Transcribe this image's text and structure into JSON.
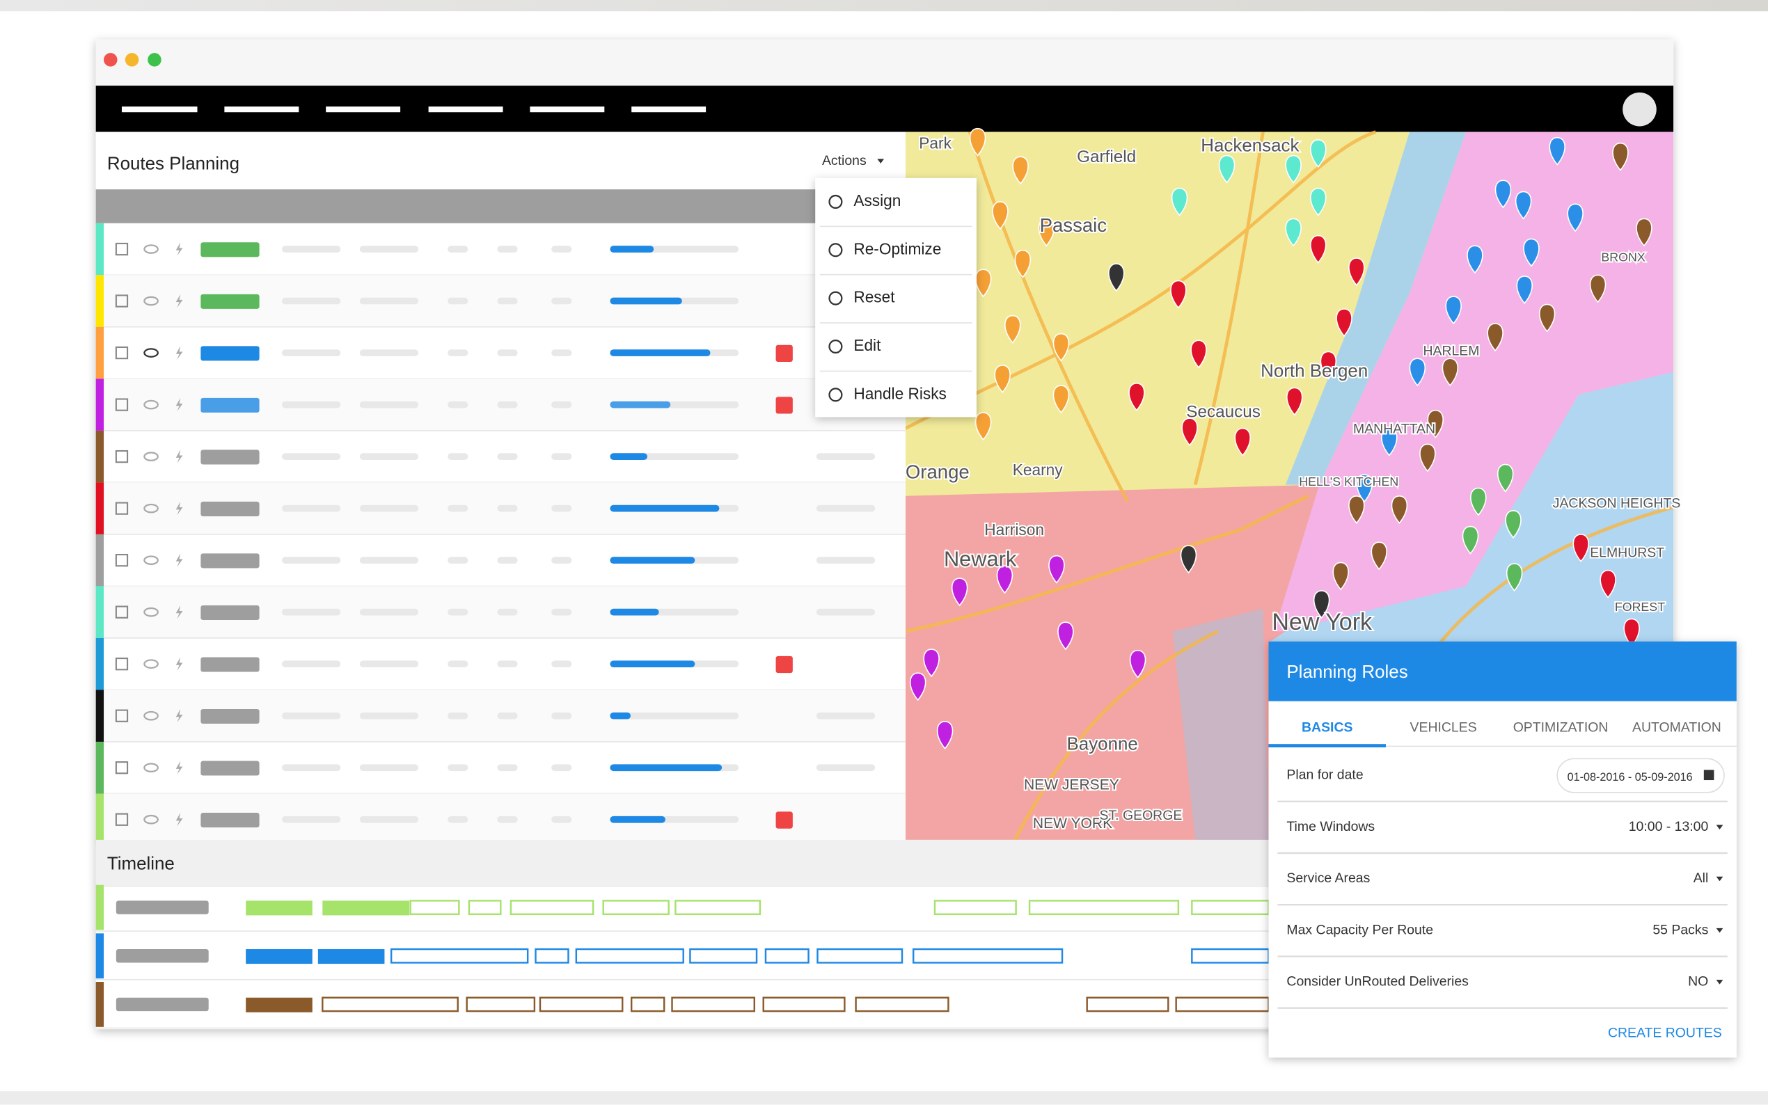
{
  "header": {
    "title": "Routes Planning",
    "actions": "Actions"
  },
  "menu": [
    "Assign",
    "Re-Optimize",
    "Reset",
    "Edit",
    "Handle Risks"
  ],
  "rows": [
    {
      "color": "#5de8c5",
      "status": "#5cb85c",
      "progress": 0.34,
      "risk": false
    },
    {
      "color": "#ffe600",
      "status": "#5cb85c",
      "progress": 0.56,
      "risk": false
    },
    {
      "color": "#ffa040",
      "status": "#1e88e5",
      "progress": 0.78,
      "risk": true
    },
    {
      "color": "#c020e0",
      "status": "#4a9ee8",
      "progress": 0.47,
      "risk": true
    },
    {
      "color": "#8b5a2b",
      "status": "#9e9e9e",
      "progress": 0.29,
      "risk": false
    },
    {
      "color": "#e01020",
      "status": "#9e9e9e",
      "progress": 0.85,
      "risk": false
    },
    {
      "color": "#9e9e9e",
      "status": "#9e9e9e",
      "progress": 0.66,
      "risk": false
    },
    {
      "color": "#5de8c5",
      "status": "#9e9e9e",
      "progress": 0.38,
      "risk": false
    },
    {
      "color": "#1e9ad6",
      "status": "#9e9e9e",
      "progress": 0.66,
      "risk": true
    },
    {
      "color": "#111111",
      "status": "#9e9e9e",
      "progress": 0.16,
      "risk": false
    },
    {
      "color": "#5cb85c",
      "status": "#9e9e9e",
      "progress": 0.87,
      "risk": false
    },
    {
      "color": "#a6e36a",
      "status": "#9e9e9e",
      "progress": 0.43,
      "risk": true
    }
  ],
  "timeline": {
    "title": "Timeline"
  },
  "map_labels": [
    "Park",
    "Garfield",
    "Hackensack",
    "Passaic",
    "North Bergen",
    "Secaucus",
    "Orange",
    "Kearny",
    "Harrison",
    "Newark",
    "Bayonne",
    "NEW JERSEY",
    "NEW YORK",
    "ST. GEORGE",
    "MANHATTAN",
    "HARLEM",
    "BRONX",
    "JACKSON HEIGHTS",
    "New York",
    "FOREST",
    "ELMHURST",
    "HELL'S KITCHEN"
  ],
  "panel": {
    "title": "Planning Roles",
    "tabs": [
      "BASICS",
      "VEHICLES",
      "OPTIMIZATION",
      "AUTOMATION"
    ],
    "fields": [
      {
        "label": "Plan for date",
        "value": "01-08-2016 - 05-09-2016"
      },
      {
        "label": "Time Windows",
        "value": "10:00 - 13:00"
      },
      {
        "label": "Service Areas",
        "value": "All"
      },
      {
        "label": "Max Capacity Per Route",
        "value": "55 Packs"
      },
      {
        "label": "Consider UnRouted Deliveries",
        "value": "NO"
      }
    ],
    "button": "CREATE ROUTES"
  }
}
